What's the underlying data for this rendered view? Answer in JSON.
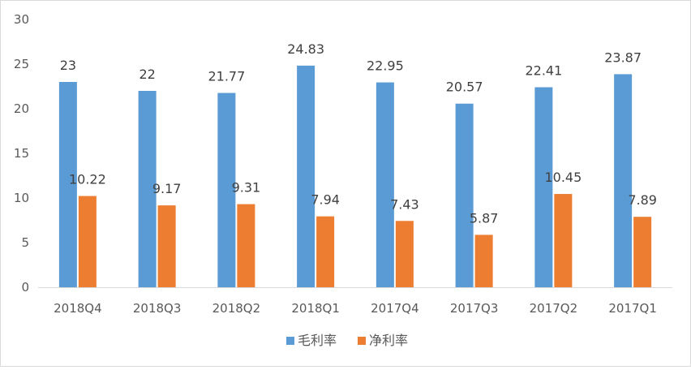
{
  "chart_data": {
    "type": "bar",
    "categories": [
      "2018Q4",
      "2018Q3",
      "2018Q2",
      "2018Q1",
      "2017Q4",
      "2017Q3",
      "2017Q2",
      "2017Q1"
    ],
    "series": [
      {
        "name": "毛利率",
        "values": [
          23,
          22,
          21.77,
          24.83,
          22.95,
          20.57,
          22.41,
          23.87
        ],
        "labels": [
          "23",
          "22",
          "21.77",
          "24.83",
          "22.95",
          "20.57",
          "22.41",
          "23.87"
        ],
        "color": "#5b9bd5"
      },
      {
        "name": "净利率",
        "values": [
          10.22,
          9.17,
          9.31,
          7.94,
          7.43,
          5.87,
          10.45,
          7.89
        ],
        "labels": [
          "10.22",
          "9.17",
          "9.31",
          "7.94",
          "7.43",
          "5.87",
          "10.45",
          "7.89"
        ],
        "color": "#ed7d31"
      }
    ],
    "yticks": [
      "0",
      "5",
      "10",
      "15",
      "20",
      "25",
      "30"
    ],
    "ylim": [
      0,
      30
    ],
    "grid": false,
    "legend": "bottom"
  }
}
